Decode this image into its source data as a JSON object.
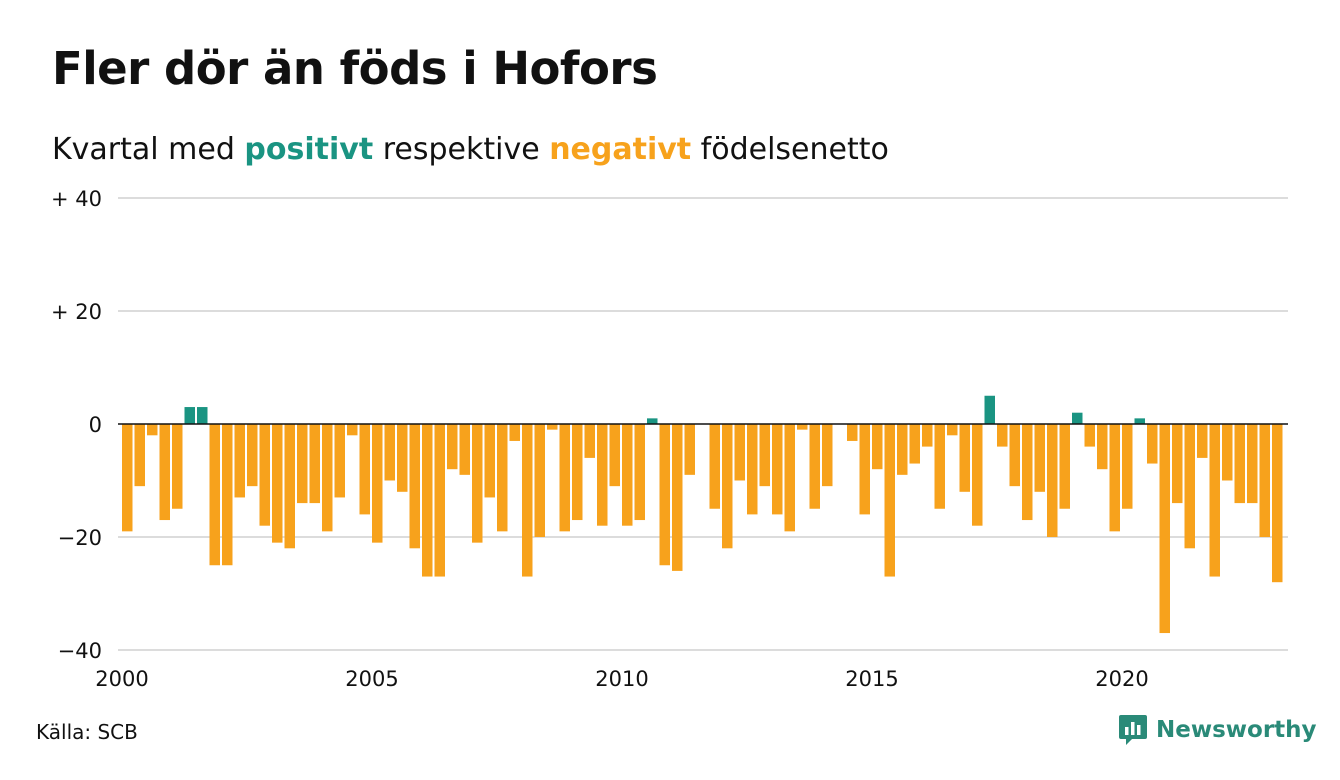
{
  "header": {
    "title": "Fler dör än föds i Hofors",
    "subtitle_parts": [
      "Kvartal med ",
      "positivt",
      " respektive ",
      "negativt",
      " födelsenetto"
    ]
  },
  "footer": {
    "source": "Källa: SCB",
    "brand": "Newsworthy"
  },
  "colors": {
    "positive": "#1a9482",
    "negative": "#f7a21c",
    "grid": "#dcdcdc",
    "axis": "#111111",
    "brand": "#2a8a78"
  },
  "chart_data": {
    "type": "bar",
    "x_start_year": 2000,
    "period": "quarter",
    "ylim": [
      -40,
      40
    ],
    "y_ticks": [
      {
        "value": 40,
        "label": "+ 40"
      },
      {
        "value": 20,
        "label": "+ 20"
      },
      {
        "value": 0,
        "label": "0"
      },
      {
        "value": -20,
        "label": "−20"
      },
      {
        "value": -40,
        "label": "−40"
      }
    ],
    "x_ticks": [
      {
        "value": 2000,
        "label": "2000"
      },
      {
        "value": 2005,
        "label": "2005"
      },
      {
        "value": 2010,
        "label": "2010"
      },
      {
        "value": 2015,
        "label": "2015"
      },
      {
        "value": 2020,
        "label": "2020"
      }
    ],
    "grid": true,
    "values": [
      -19,
      -11,
      -2,
      -17,
      -15,
      3,
      3,
      -25,
      -25,
      -13,
      -11,
      -18,
      -21,
      -22,
      -14,
      -14,
      -19,
      -13,
      -2,
      -16,
      -21,
      -10,
      -12,
      -22,
      -27,
      -27,
      -8,
      -9,
      -21,
      -13,
      -19,
      -3,
      -27,
      -20,
      -1,
      -19,
      -17,
      -6,
      -18,
      -11,
      -18,
      -17,
      1,
      -25,
      -26,
      -9,
      0,
      -15,
      -22,
      -10,
      -16,
      -11,
      -16,
      -19,
      -1,
      -15,
      -11,
      0,
      -3,
      -16,
      -8,
      -27,
      -9,
      -7,
      -4,
      -15,
      -2,
      -12,
      -18,
      5,
      -4,
      -11,
      -17,
      -12,
      -20,
      -15,
      2,
      -4,
      -8,
      -19,
      -15,
      1,
      -7,
      -37,
      -14,
      -22,
      -6,
      -27,
      -10,
      -14,
      -14,
      -20,
      -28
    ]
  }
}
